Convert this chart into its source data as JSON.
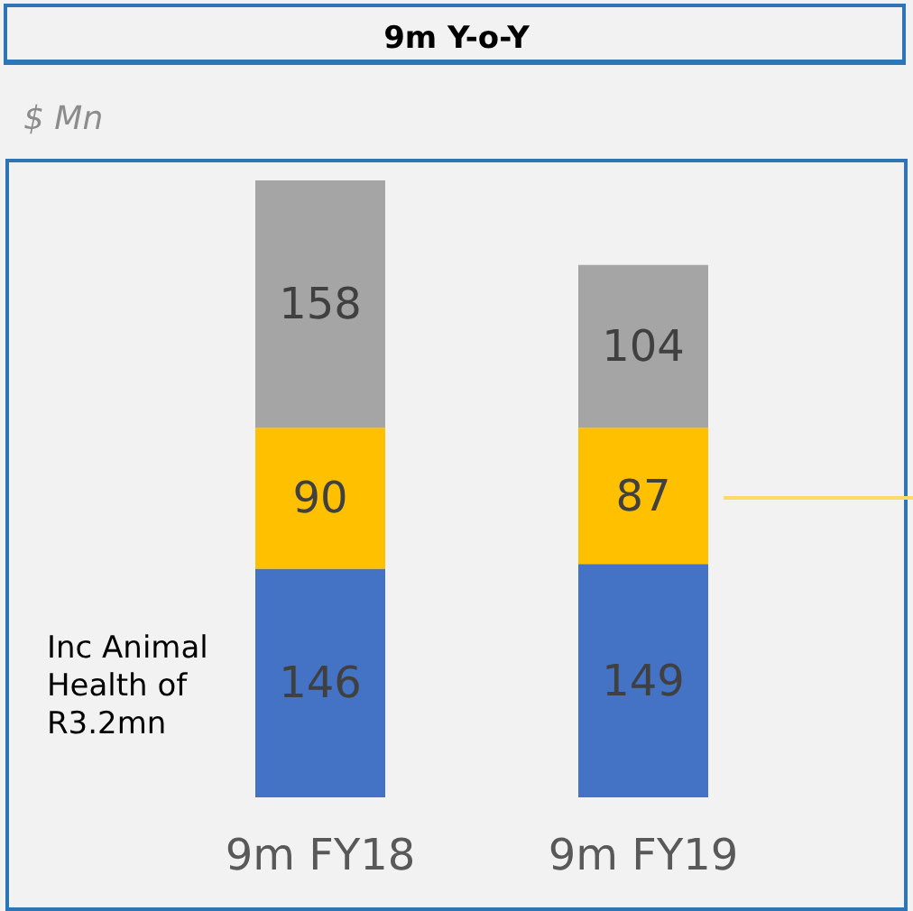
{
  "chart_data": {
    "type": "bar",
    "title": "9m Y-o-Y",
    "ylabel": "$ Mn",
    "categories": [
      "9m FY18",
      "9m FY19"
    ],
    "stacked": true,
    "data_labels": true,
    "series": [
      {
        "color": "#4472c4",
        "values": [
          146,
          149
        ]
      },
      {
        "color": "#ffc000",
        "values": [
          90,
          87
        ]
      },
      {
        "color": "#a5a5a5",
        "values": [
          158,
          104
        ]
      }
    ],
    "annotations": [
      "Inc Animal Health of R3.2mn"
    ]
  }
}
